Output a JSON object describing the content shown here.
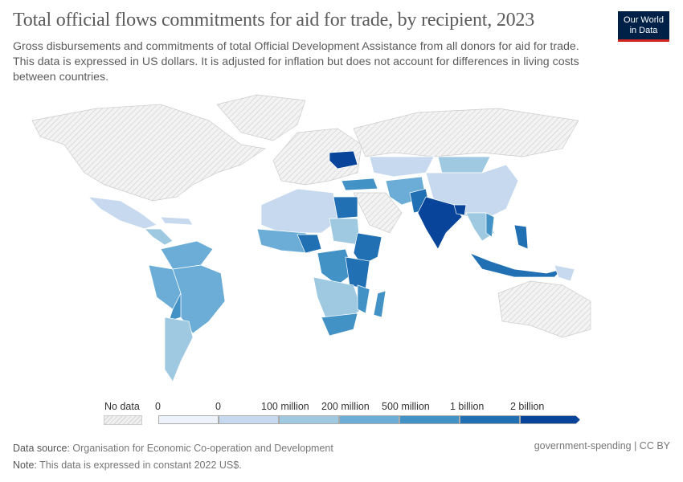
{
  "header": {
    "title": "Total official flows commitments for aid for trade, by recipient, 2023",
    "subtitle": "Gross disbursements and commitments of total Official Development Assistance from all donors for aid for trade. This data is expressed in US dollars. It is adjusted for inflation but does not account for differences in living costs between countries.",
    "logo": [
      "Our World",
      "in Data"
    ]
  },
  "legend": {
    "no_data_label": "No data",
    "bins": [
      "0",
      "0",
      "100 million",
      "200 million",
      "500 million",
      "1 billion",
      "2 billion"
    ],
    "colors": [
      "#eef3fb",
      "#c6d9ee",
      "#9ec9e1",
      "#6badd6",
      "#4292c6",
      "#2170b4",
      "#08459a"
    ],
    "no_data_color": "#e6e6e6"
  },
  "footer": {
    "source_label": "Data source:",
    "source": "Organisation for Economic Co-operation and Development",
    "note_label": "Note:",
    "note": "This data is expressed in constant 2022 US$.",
    "right": "government-spending | CC BY"
  }
}
